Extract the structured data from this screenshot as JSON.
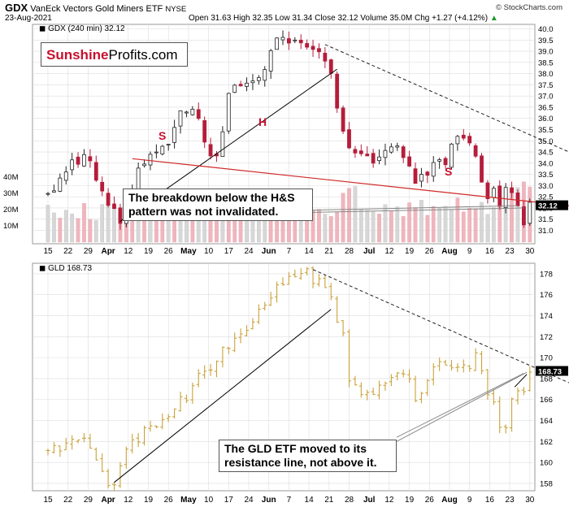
{
  "header": {
    "ticker": "GDX",
    "name": "VanEck Vectors Gold Miners ETF",
    "exchange": "NYSE",
    "date": "23-Aug-2021",
    "ohlc": "Open 31.63  High 32.35  Low 31.34  Close 32.12  Volume 35.0M  Chg +1.27 (+4.12%)",
    "chg_icon": "up-triangle-icon",
    "copyright": "© StockCharts.com"
  },
  "logo": {
    "brand": "Sunshine",
    "rest": "Profits.com"
  },
  "callouts": {
    "gdx": [
      "The breakdown below the H&S",
      "pattern was not invalidated."
    ],
    "gld": [
      "The GLD ETF moved to its",
      "resistance line, not above it."
    ]
  },
  "colors": {
    "candle_up": "#222222",
    "candle_down": "#b51d3a",
    "gld_bar": "#c9a23a",
    "volume": "#f0b5bd",
    "neckline": "#d02828",
    "annotation": "#c8102e",
    "grid": "#dddddd"
  },
  "chart_data": [
    {
      "type": "candlestick",
      "title": "GDX (240 min) 32.12",
      "legend": "GDX (240 min) 32.12",
      "y_range": [
        30.4,
        40.2
      ],
      "y_ticks": [
        31.0,
        31.5,
        32.0,
        32.5,
        33.0,
        33.5,
        34.0,
        34.5,
        35.0,
        35.5,
        36.0,
        36.5,
        37.0,
        37.5,
        38.0,
        38.5,
        39.0,
        39.5,
        40.0
      ],
      "last_value": 32.12,
      "x_labels": [
        "15",
        "22",
        "29",
        "Apr",
        "12",
        "19",
        "26",
        "May",
        "10",
        "17",
        "24",
        "Jun",
        "7",
        "14",
        "21",
        "28",
        "Jul",
        "12",
        "19",
        "26",
        "Aug",
        "9",
        "16",
        "23",
        "30"
      ],
      "close_path": [
        [
          0,
          32.7
        ],
        [
          3,
          33.6
        ],
        [
          6,
          34.5
        ],
        [
          8,
          33.4
        ],
        [
          10,
          32.3
        ],
        [
          12,
          31.4
        ],
        [
          14,
          32.9
        ],
        [
          16,
          34.2
        ],
        [
          18,
          34.3
        ],
        [
          20,
          34.8
        ],
        [
          22,
          36.1
        ],
        [
          24,
          36.5
        ],
        [
          25,
          35.8
        ],
        [
          27,
          34.5
        ],
        [
          28,
          34.4
        ],
        [
          29,
          35.6
        ],
        [
          30,
          36.9
        ],
        [
          32,
          37.6
        ],
        [
          34,
          37.7
        ],
        [
          36,
          38.4
        ],
        [
          38,
          39.7
        ],
        [
          40,
          39.3
        ],
        [
          42,
          39.6
        ],
        [
          43,
          39.1
        ],
        [
          45,
          38.9
        ],
        [
          46,
          38.7
        ],
        [
          47,
          38.2
        ],
        [
          48,
          36.6
        ],
        [
          49,
          35.2
        ],
        [
          50,
          34.6
        ],
        [
          52,
          34.4
        ],
        [
          54,
          33.8
        ],
        [
          55,
          34.2
        ],
        [
          57,
          34.8
        ],
        [
          59,
          34.3
        ],
        [
          60,
          33.9
        ],
        [
          61,
          33.3
        ],
        [
          63,
          33.3
        ],
        [
          64,
          33.9
        ],
        [
          66,
          34.1
        ],
        [
          67,
          34.8
        ],
        [
          69,
          35.3
        ],
        [
          70,
          35.0
        ],
        [
          71,
          34.3
        ],
        [
          72,
          33.2
        ],
        [
          73,
          32.4
        ],
        [
          74,
          32.8
        ],
        [
          75,
          32.0
        ],
        [
          76,
          32.7
        ],
        [
          77,
          32.5
        ],
        [
          78,
          32.1
        ],
        [
          79,
          31.4
        ],
        [
          79.5,
          31.0
        ],
        [
          80,
          32.1
        ]
      ],
      "volume_range_M": [
        0,
        45
      ],
      "volume_ticks_M": [
        10,
        20,
        30,
        40
      ],
      "pattern_labels": [
        "S",
        "H",
        "S"
      ]
    },
    {
      "type": "ohlc",
      "title": "GLD 168.73",
      "legend": "GLD 168.73",
      "y_range": [
        157.3,
        179.0
      ],
      "y_ticks": [
        158,
        160,
        162,
        164,
        166,
        168,
        170,
        172,
        174,
        176,
        178
      ],
      "last_value": 168.73,
      "x_labels": [
        "15",
        "22",
        "29",
        "Apr",
        "12",
        "19",
        "26",
        "May",
        "10",
        "17",
        "24",
        "Jun",
        "7",
        "14",
        "21",
        "28",
        "Jul",
        "12",
        "19",
        "26",
        "Aug",
        "9",
        "16",
        "23",
        "30"
      ],
      "close_path": [
        [
          0,
          161.0
        ],
        [
          3,
          161.6
        ],
        [
          6,
          162.3
        ],
        [
          8,
          160.0
        ],
        [
          10,
          158.2
        ],
        [
          11,
          158.0
        ],
        [
          13,
          161.2
        ],
        [
          15,
          162.2
        ],
        [
          17,
          163.6
        ],
        [
          19,
          163.8
        ],
        [
          21,
          165.5
        ],
        [
          23,
          166.3
        ],
        [
          25,
          168.2
        ],
        [
          27,
          168.9
        ],
        [
          29,
          170.8
        ],
        [
          31,
          171.5
        ],
        [
          33,
          172.5
        ],
        [
          35,
          174.5
        ],
        [
          37,
          175.8
        ],
        [
          39,
          177.4
        ],
        [
          41,
          178.0
        ],
        [
          43,
          178.4
        ],
        [
          44,
          177.3
        ],
        [
          46,
          177.0
        ],
        [
          47,
          175.6
        ],
        [
          48,
          173.4
        ],
        [
          49,
          172.0
        ],
        [
          50,
          168.0
        ],
        [
          52,
          166.5
        ],
        [
          54,
          166.8
        ],
        [
          56,
          167.8
        ],
        [
          58,
          168.2
        ],
        [
          60,
          167.8
        ],
        [
          61,
          166.3
        ],
        [
          62,
          166.6
        ],
        [
          63,
          168.2
        ],
        [
          65,
          169.7
        ],
        [
          67,
          169.0
        ],
        [
          69,
          169.4
        ],
        [
          70,
          169.2
        ],
        [
          71,
          170.8
        ],
        [
          72,
          168.6
        ],
        [
          73,
          166.5
        ],
        [
          74,
          166.0
        ],
        [
          75,
          163.0
        ],
        [
          75.5,
          161.4
        ],
        [
          76,
          163.0
        ],
        [
          77,
          166.1
        ],
        [
          78,
          166.6
        ],
        [
          79,
          167.1
        ],
        [
          80,
          168.7
        ]
      ]
    }
  ]
}
